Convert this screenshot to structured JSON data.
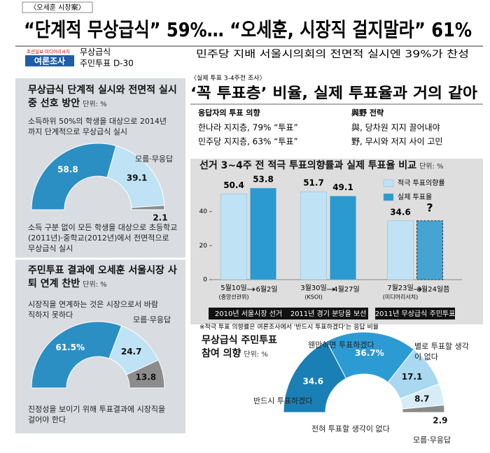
{
  "header": {
    "tag": "〈오세훈 시장案〉",
    "headline": "“단계적 무상급식” 59%… “오세훈, 시장직 걸지말라” 61%",
    "logo_top": "조선일보·미디어리서치",
    "logo": "여론조사",
    "topic": "무상급식",
    "dday": "주민투표 D-30",
    "subhead": "민주당 지배 서울시의회의   전면적 실시엔 39%가 찬성"
  },
  "right_header": {
    "tag": "〈실제 투표 3-4주전 조사〉",
    "title": "‘꼭 투표층’ 비율, 실제 투표율과 거의 같아",
    "col1": [
      "응답자의 투표 의향",
      "한나라 지지층, 79% “투표”",
      "민주당 지지층, 63% “투표”"
    ],
    "col2": [
      "與野 전략",
      "與, 당차원 지지 끌어내야",
      "野, 무시와 저지 사이 고민"
    ]
  },
  "chart_data": [
    {
      "type": "half-donut",
      "title": "무상급식 단계적 실시와 전면적 실시 중 선호 방안",
      "unit": "단위: %",
      "categories": [
        "소득하위 50%의 학생을 대상으로 2014년까지 단계적으로 무상급식 실시",
        "소득 구분 없이 모든 학생을 대상으로 초등학교(2011년)·중학교(2012년)에서 전면적으로 무상급식 실시",
        "모름·무응답"
      ],
      "values": [
        58.8,
        39.1,
        2.1
      ],
      "colors": [
        "#2b8fc4",
        "#bfe2f5",
        "#8c8c8c"
      ]
    },
    {
      "type": "half-donut",
      "title": "주민투표 결과에 오세훈 서울시장 사퇴 연계 찬반",
      "unit": "단위: %",
      "categories": [
        "시장직을 연계하는 것은 시장으로서 바람직하지 못하다",
        "진정성을 보이기 위해 투표결과에 시장직을 걸어야 한다",
        "모름·무응답"
      ],
      "values": [
        61.5,
        24.7,
        13.8
      ],
      "value_labels": [
        "61.5%",
        "24.7",
        "13.8"
      ],
      "colors": [
        "#2b8fc4",
        "#bfe2f5",
        "#8c8c8c"
      ]
    },
    {
      "type": "bar",
      "title": "선거 3~4주 전 적극 투표의향률과 실제 투표율 비교",
      "unit": "단위: %",
      "categories": [
        "2010년 서울시장 선거",
        "2011년 경기 분당을 보선",
        "2011년 무상급식 주민투표"
      ],
      "survey_dates": [
        "5월10일",
        "3월30일",
        "7월23일"
      ],
      "sources": [
        "(중앙선관위)",
        "(KSOI)",
        "(미디어리서치)"
      ],
      "vote_dates": [
        "6월2일",
        "4월27일",
        "8월24일쯤"
      ],
      "series": [
        {
          "name": "적극 투표의향률",
          "color": "#bfe2f5",
          "values": [
            50.4,
            51.7,
            34.6
          ]
        },
        {
          "name": "실제 투표율",
          "color": "#2a9ad0",
          "values": [
            53.8,
            49.1,
            null
          ],
          "value_labels": [
            "53.8",
            "49.1",
            "?"
          ]
        }
      ],
      "ylim": [
        0,
        60
      ],
      "yticks": [
        0,
        20,
        40
      ],
      "note": "※적극 투표 의향률은 여론조사에서 '반드시 투표하겠다'는 응답 비율"
    },
    {
      "type": "half-donut",
      "title": "무상급식 주민투표 참여 의향",
      "unit": "단위: %",
      "categories": [
        "반드시 투표하겠다",
        "웬만하면 투표하겠다",
        "별로 투표할 생각이 없다",
        "전혀 투표할 생각이 없다",
        "모름·무응답"
      ],
      "values": [
        34.6,
        36.7,
        17.1,
        8.7,
        2.9
      ],
      "value_labels": [
        "34.6",
        "36.7%",
        "17.1",
        "8.7",
        "2.9"
      ],
      "colors": [
        "#1a7fb5",
        "#2c9bd4",
        "#a9d8f0",
        "#d6edf8",
        "#8a8a8a"
      ]
    }
  ]
}
